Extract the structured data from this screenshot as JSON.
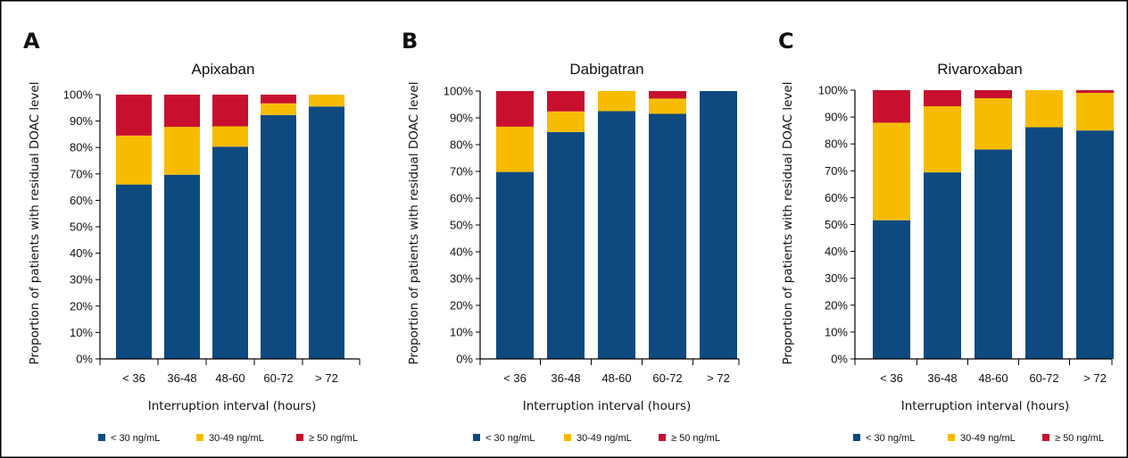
{
  "chart_data": [
    {
      "type": "bar",
      "stacked": true,
      "panel": "A",
      "title": "Apixaban",
      "xlabel": "Interruption interval (hours)",
      "ylabel": "Proportion of patients with residual DOAC level",
      "ylim": [
        0,
        100
      ],
      "yticks": [
        "0%",
        "10%",
        "20%",
        "30%",
        "40%",
        "50%",
        "60%",
        "70%",
        "80%",
        "90%",
        "100%"
      ],
      "categories": [
        "< 36",
        "36-48",
        "48-60",
        "60-72",
        "> 72"
      ],
      "series": [
        {
          "name": "< 30 ng/mL",
          "color": "#0e4a80",
          "values": [
            66,
            69.7,
            80.3,
            92.3,
            95.5
          ]
        },
        {
          "name": "30-49 ng/mL",
          "color": "#f7bc00",
          "values": [
            18.5,
            18.1,
            7.7,
            4.4,
            4.5
          ]
        },
        {
          "name": "≥ 50 ng/mL",
          "color": "#c8102e",
          "values": [
            15.5,
            12.2,
            12,
            3.3,
            0
          ]
        }
      ],
      "legend": "bottom"
    },
    {
      "type": "bar",
      "stacked": true,
      "panel": "B",
      "title": "Dabigatran",
      "xlabel": "Interruption interval (hours)",
      "ylabel": "Proportion of patients with residual DOAC level",
      "ylim": [
        0,
        100
      ],
      "yticks": [
        "0%",
        "10%",
        "20%",
        "30%",
        "40%",
        "50%",
        "60%",
        "70%",
        "80%",
        "90%",
        "100%"
      ],
      "categories": [
        "< 36",
        "36-48",
        "48-60",
        "60-72",
        "> 72"
      ],
      "series": [
        {
          "name": "< 30 ng/mL",
          "color": "#0e4a80",
          "values": [
            69.8,
            84.7,
            92.5,
            91.5,
            100
          ]
        },
        {
          "name": "30-49 ng/mL",
          "color": "#f7bc00",
          "values": [
            16.9,
            7.7,
            7.5,
            5.7,
            0
          ]
        },
        {
          "name": "≥ 50 ng/mL",
          "color": "#c8102e",
          "values": [
            13.3,
            7.6,
            0,
            2.8,
            0
          ]
        }
      ],
      "legend": "bottom"
    },
    {
      "type": "bar",
      "stacked": true,
      "panel": "C",
      "title": "Rivaroxaban",
      "xlabel": "Interruption interval (hours)",
      "ylabel": "Proportion of patients with residual DOAC level",
      "ylim": [
        0,
        100
      ],
      "yticks": [
        "0%",
        "10%",
        "20%",
        "30%",
        "40%",
        "50%",
        "60%",
        "70%",
        "80%",
        "90%",
        "100%"
      ],
      "categories": [
        "< 36",
        "36-48",
        "48-60",
        "60-72",
        "> 72"
      ],
      "series": [
        {
          "name": "< 30 ng/mL",
          "color": "#0e4a80",
          "values": [
            51.6,
            69.4,
            77.9,
            86.2,
            85
          ]
        },
        {
          "name": "30-49 ng/mL",
          "color": "#f7bc00",
          "values": [
            36.3,
            24.6,
            19.1,
            13.8,
            14
          ]
        },
        {
          "name": "≥ 50 ng/mL",
          "color": "#c8102e",
          "values": [
            12.1,
            6,
            3,
            0,
            1
          ]
        }
      ],
      "legend": "bottom"
    }
  ]
}
